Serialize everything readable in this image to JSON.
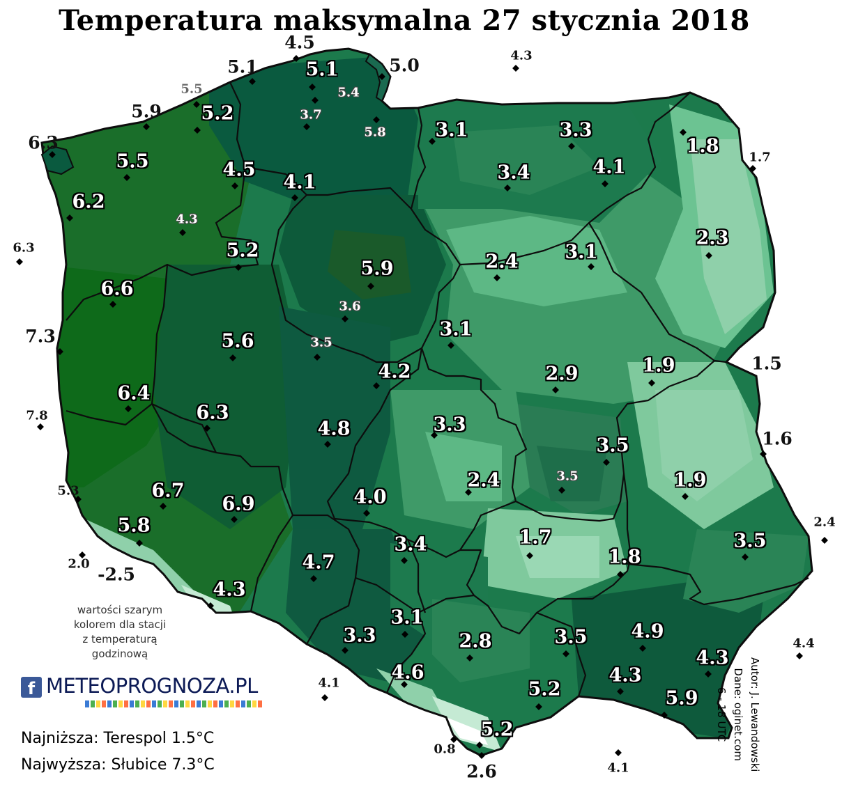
{
  "title": "Temperatura maksymalna 27 stycznia 2018",
  "palette": {
    "darkest": "#0a5a3c",
    "dark": "#136c45",
    "mid": "#2a8456",
    "light": "#5db885",
    "lightest": "#8fd0aa",
    "forest": "#155c1c",
    "deep_west": "#0f6a20",
    "border": "#0d0d0d",
    "lake": "#ffffff"
  },
  "stations": [
    {
      "value": "6.3",
      "style": "outbig"
    },
    {
      "value": "5.9",
      "style": "outbig"
    },
    {
      "value": "5.5",
      "style": "grayout"
    },
    {
      "value": "5.1",
      "style": "outbig"
    },
    {
      "value": "4.5",
      "style": "outbig"
    },
    {
      "value": "5.1",
      "style": "big"
    },
    {
      "value": "5.4",
      "style": "small"
    },
    {
      "value": "5.0",
      "style": "outbig"
    },
    {
      "value": "4.3",
      "style": "out"
    },
    {
      "value": "5.2",
      "style": "big"
    },
    {
      "value": "3.7",
      "style": "small"
    },
    {
      "value": "5.8",
      "style": "small"
    },
    {
      "value": "3.1",
      "style": "big"
    },
    {
      "value": "3.3",
      "style": "big"
    },
    {
      "value": "1.8",
      "style": "big"
    },
    {
      "value": "1.7",
      "style": "out"
    },
    {
      "value": "5.5",
      "style": "big"
    },
    {
      "value": "4.5",
      "style": "big"
    },
    {
      "value": "4.1",
      "style": "big"
    },
    {
      "value": "3.4",
      "style": "big"
    },
    {
      "value": "4.1",
      "style": "big"
    },
    {
      "value": "6.2",
      "style": "big"
    },
    {
      "value": "4.3",
      "style": "small"
    },
    {
      "value": "2.3",
      "style": "big"
    },
    {
      "value": "6.3",
      "style": "out"
    },
    {
      "value": "5.2",
      "style": "big"
    },
    {
      "value": "5.9",
      "style": "big"
    },
    {
      "value": "2.4",
      "style": "big"
    },
    {
      "value": "3.1",
      "style": "big"
    },
    {
      "value": "6.6",
      "style": "big"
    },
    {
      "value": "3.6",
      "style": "small"
    },
    {
      "value": "7.3",
      "style": "outbig"
    },
    {
      "value": "5.6",
      "style": "big"
    },
    {
      "value": "3.5",
      "style": "small"
    },
    {
      "value": "3.1",
      "style": "big"
    },
    {
      "value": "4.2",
      "style": "big"
    },
    {
      "value": "2.9",
      "style": "big"
    },
    {
      "value": "1.9",
      "style": "big"
    },
    {
      "value": "1.5",
      "style": "outbig"
    },
    {
      "value": "6.4",
      "style": "big"
    },
    {
      "value": "7.8",
      "style": "out"
    },
    {
      "value": "6.3",
      "style": "big"
    },
    {
      "value": "4.8",
      "style": "big"
    },
    {
      "value": "3.3",
      "style": "big"
    },
    {
      "value": "3.5",
      "style": "big"
    },
    {
      "value": "1.6",
      "style": "outbig"
    },
    {
      "value": "3.5",
      "style": "small"
    },
    {
      "value": "2.4",
      "style": "big"
    },
    {
      "value": "1.9",
      "style": "big"
    },
    {
      "value": "5.3",
      "style": "out"
    },
    {
      "value": "6.7",
      "style": "big"
    },
    {
      "value": "6.9",
      "style": "big"
    },
    {
      "value": "4.0",
      "style": "big"
    },
    {
      "value": "2.4",
      "style": "out"
    },
    {
      "value": "5.8",
      "style": "big"
    },
    {
      "value": "1.7",
      "style": "big"
    },
    {
      "value": "3.5",
      "style": "big"
    },
    {
      "value": "3.4",
      "style": "big"
    },
    {
      "value": "2.0",
      "style": "out"
    },
    {
      "value": "-2.5",
      "style": "outbig"
    },
    {
      "value": "4.7",
      "style": "big"
    },
    {
      "value": "1.8",
      "style": "big"
    },
    {
      "value": "4.3",
      "style": "big"
    },
    {
      "value": "3.1",
      "style": "big"
    },
    {
      "value": "3.3",
      "style": "big"
    },
    {
      "value": "2.8",
      "style": "big"
    },
    {
      "value": "3.5",
      "style": "big"
    },
    {
      "value": "4.9",
      "style": "big"
    },
    {
      "value": "4.4",
      "style": "out"
    },
    {
      "value": "4.3",
      "style": "big"
    },
    {
      "value": "4.3",
      "style": "big"
    },
    {
      "value": "4.6",
      "style": "big"
    },
    {
      "value": "4.1",
      "style": "out"
    },
    {
      "value": "5.2",
      "style": "big"
    },
    {
      "value": "5.9",
      "style": "big"
    },
    {
      "value": "5.2",
      "style": "big"
    },
    {
      "value": "0.8",
      "style": "out"
    },
    {
      "value": "2.6",
      "style": "outbig"
    },
    {
      "value": "4.1",
      "style": "out"
    }
  ],
  "note": {
    "line1": "wartości szarym",
    "line2": "kolorem dla stacji",
    "line3": "z temperaturą",
    "line4": "godzinową"
  },
  "logo": {
    "icon": "facebook-icon",
    "brand": "METEOPROGNOZA.PL"
  },
  "stats": {
    "min": "Najniższa: Terespol 1.5°C",
    "max": "Najwyższa: Słubice 7.3°C"
  },
  "credits": {
    "author": "Autor: J. Lewandowski",
    "data": "Dane: oginet.com",
    "period": "6 - 18 UTC"
  }
}
